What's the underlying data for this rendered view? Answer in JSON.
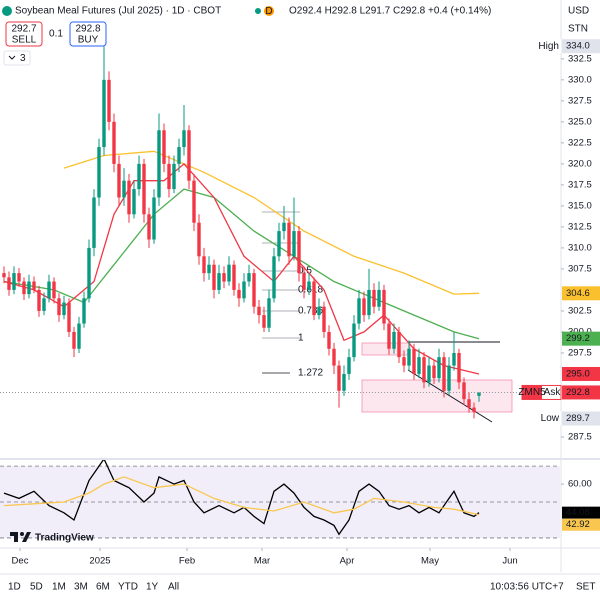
{
  "header": {
    "title": "Soybean Meal Futures (Jul 2025) · 1D · CBOT",
    "marker": "D",
    "ohlc": "O292.4 H292.8 L291.7 C292.8 +0.4 (+0.14%)"
  },
  "trade": {
    "sell_price": "292.7",
    "sell": "SELL",
    "spread": "0.1",
    "buy_price": "292.8",
    "buy": "BUY"
  },
  "indicators_count": "3",
  "currency": "USD",
  "unit": "STN",
  "fib_levels": [
    "0.5",
    "0.618",
    "0.786",
    "1",
    "1.272"
  ],
  "logo": "TradingView",
  "toolbar": {
    "ranges": [
      "1D",
      "5D",
      "1M",
      "3M",
      "6M",
      "YTD",
      "1Y",
      "All"
    ],
    "clock": "10:03:56 UTC+7",
    "session": "SET"
  },
  "chart_data": [
    {
      "type": "candlestick",
      "xlim": [
        -0.8,
        111.2
      ],
      "ylim": [
        285,
        339.5
      ],
      "xticks": [
        {
          "value": 3.2,
          "label": "Dec"
        },
        {
          "value": 19.2,
          "label": "2025"
        },
        {
          "value": 36.6,
          "label": "Feb"
        },
        {
          "value": 51.6,
          "label": "Mar"
        },
        {
          "value": 68.6,
          "label": "Apr"
        },
        {
          "value": 85.2,
          "label": "May"
        },
        {
          "value": 101.2,
          "label": "Jun"
        }
      ],
      "yticks": [
        {
          "value": 287.5,
          "label": "287.5"
        },
        {
          "value": 297.5,
          "label": "297.5"
        },
        {
          "value": 300,
          "label": "300.0"
        },
        {
          "value": 302.5,
          "label": "302.5"
        },
        {
          "value": 307.5,
          "label": "307.5"
        },
        {
          "value": 310,
          "label": "310.0"
        },
        {
          "value": 312.5,
          "label": "312.5"
        },
        {
          "value": 315,
          "label": "315.0"
        },
        {
          "value": 317.5,
          "label": "317.5"
        },
        {
          "value": 320,
          "label": "320.0"
        },
        {
          "value": 322.5,
          "label": "322.5"
        },
        {
          "value": 325,
          "label": "325.0"
        },
        {
          "value": 327.5,
          "label": "327.5"
        },
        {
          "value": 330,
          "label": "330.0"
        },
        {
          "value": 332.5,
          "label": "332.5"
        }
      ],
      "up_color": "#089981",
      "down_color": "#f23645",
      "ohlc": [
        [
          307,
          307.8,
          305.8,
          306.5
        ],
        [
          306.5,
          307.2,
          304.3,
          305
        ],
        [
          305,
          307.8,
          304.5,
          307
        ],
        [
          307,
          307.6,
          305.4,
          306
        ],
        [
          306,
          306.5,
          303.8,
          304.5
        ],
        [
          304.5,
          306.8,
          304,
          306
        ],
        [
          306,
          306.6,
          304.6,
          305
        ],
        [
          305,
          305.5,
          301.8,
          302.5
        ],
        [
          302.5,
          304.7,
          302,
          304
        ],
        [
          304,
          306.8,
          303.5,
          306
        ],
        [
          306,
          306.5,
          303.4,
          304
        ],
        [
          304,
          304.6,
          301.2,
          302
        ],
        [
          302,
          304.3,
          301.5,
          303.5
        ],
        [
          303.5,
          304,
          299.4,
          300
        ],
        [
          300,
          300.6,
          297,
          298
        ],
        [
          298,
          301.8,
          297.5,
          301
        ],
        [
          301,
          304.8,
          300.5,
          304
        ],
        [
          304,
          311,
          303.5,
          310
        ],
        [
          310,
          317,
          309,
          316
        ],
        [
          316,
          323,
          315,
          322
        ],
        [
          322,
          334,
          321,
          330
        ],
        [
          330,
          331,
          324,
          325
        ],
        [
          325,
          326,
          319,
          320
        ],
        [
          320,
          321,
          315,
          316
        ],
        [
          316,
          319.5,
          315,
          318
        ],
        [
          318,
          318.8,
          313,
          314
        ],
        [
          314,
          318,
          313.5,
          317
        ],
        [
          317,
          321,
          316.2,
          320
        ],
        [
          320,
          320.6,
          313,
          314
        ],
        [
          314,
          314.8,
          310,
          311
        ],
        [
          311,
          317,
          310.5,
          316
        ],
        [
          316,
          326,
          315,
          324
        ],
        [
          324,
          324.8,
          319,
          320
        ],
        [
          320,
          321,
          316,
          317
        ],
        [
          317,
          321,
          316.5,
          320
        ],
        [
          320,
          323,
          319,
          322
        ],
        [
          322,
          327,
          321,
          324
        ],
        [
          324,
          324.6,
          317,
          318
        ],
        [
          318,
          318.8,
          312,
          313
        ],
        [
          313,
          314,
          308,
          309
        ],
        [
          309,
          310,
          306,
          307
        ],
        [
          307,
          309,
          306.2,
          308
        ],
        [
          308,
          308.6,
          304,
          305
        ],
        [
          305,
          308,
          304.5,
          307
        ],
        [
          307,
          307.8,
          305.2,
          306
        ],
        [
          306,
          309,
          305.5,
          308
        ],
        [
          308,
          308.5,
          304.3,
          305
        ],
        [
          305,
          305.8,
          303,
          304
        ],
        [
          304,
          307,
          303.5,
          306
        ],
        [
          306,
          308,
          305.4,
          307
        ],
        [
          307,
          307.5,
          302.2,
          303
        ],
        [
          303,
          303.8,
          301,
          302
        ],
        [
          302,
          303,
          300,
          300.5
        ],
        [
          300.5,
          305,
          300,
          304
        ],
        [
          304,
          310,
          303.5,
          309
        ],
        [
          309,
          313,
          308.4,
          312
        ],
        [
          312,
          315,
          311,
          313
        ],
        [
          313,
          313.6,
          308,
          309
        ],
        [
          309,
          316,
          308.5,
          312
        ],
        [
          312,
          312.6,
          306,
          307
        ],
        [
          307,
          307.8,
          304,
          305
        ],
        [
          305,
          307,
          304.4,
          306
        ],
        [
          306,
          306.5,
          301.4,
          302
        ],
        [
          302,
          304,
          301.5,
          303
        ],
        [
          303,
          303.6,
          299.3,
          300
        ],
        [
          300,
          300.8,
          297.2,
          298
        ],
        [
          298,
          298.7,
          295,
          296
        ],
        [
          296,
          296.6,
          291,
          293
        ],
        [
          293,
          296,
          292.4,
          295
        ],
        [
          295,
          298,
          294.3,
          297
        ],
        [
          297,
          302,
          296.5,
          301
        ],
        [
          301,
          305,
          300.3,
          304
        ],
        [
          304,
          304.8,
          301.2,
          302
        ],
        [
          302,
          307.5,
          301.5,
          305
        ],
        [
          305,
          305.8,
          302.2,
          303
        ],
        [
          303,
          306,
          302.5,
          305
        ],
        [
          305,
          305.6,
          300.2,
          301
        ],
        [
          301,
          301.6,
          297.3,
          298
        ],
        [
          298,
          301,
          297.4,
          300
        ],
        [
          300,
          300.6,
          296.3,
          297
        ],
        [
          297,
          297.8,
          295.2,
          296
        ],
        [
          296,
          299,
          295.4,
          298
        ],
        [
          298,
          298.6,
          294.3,
          295
        ],
        [
          295,
          298,
          294.5,
          297
        ],
        [
          297,
          297.6,
          293.3,
          294
        ],
        [
          294,
          297,
          293.5,
          296
        ],
        [
          296,
          296.6,
          293.8,
          294.5
        ],
        [
          294.5,
          298,
          294,
          297
        ],
        [
          297,
          297.6,
          292.2,
          293
        ],
        [
          293,
          297,
          292.5,
          296
        ],
        [
          296,
          300,
          295.4,
          297.5
        ],
        [
          297.5,
          298,
          293.2,
          294
        ],
        [
          294,
          294.6,
          291.3,
          292
        ],
        [
          292,
          292.8,
          290.4,
          291
        ],
        [
          291,
          291.6,
          289.7,
          290.5
        ],
        [
          292.4,
          292.8,
          291.7,
          292.8
        ]
      ],
      "series": [
        {
          "color": "#fbc02d",
          "x": [
            12,
            20,
            30,
            40,
            50,
            60,
            70,
            80,
            90,
            95
          ],
          "values": [
            319.5,
            321,
            321.5,
            319,
            316,
            312,
            309,
            307,
            304.5,
            304.6
          ]
        },
        {
          "color": "#4caf50",
          "x": [
            0,
            10,
            16,
            22,
            30,
            36,
            42,
            50,
            58,
            66,
            74,
            82,
            90,
            95
          ],
          "values": [
            306,
            305,
            303.5,
            308,
            314,
            317,
            316,
            312,
            309,
            306,
            304,
            302,
            300,
            299.2
          ]
        },
        {
          "color": "#f23645",
          "x": [
            0,
            6,
            12,
            18,
            22,
            26,
            32,
            36,
            42,
            48,
            54,
            58,
            64,
            68,
            72,
            76,
            82,
            88,
            95
          ],
          "values": [
            306,
            305,
            303,
            306,
            314,
            318,
            318,
            320,
            316,
            309,
            306,
            309,
            305,
            299,
            300,
            302,
            298,
            296,
            295
          ]
        }
      ],
      "price_tags": [
        {
          "label": "High",
          "value": 334,
          "value_label": "334.0",
          "color": "#e0e3eb",
          "text_color": "#131722"
        },
        {
          "value": 304.6,
          "value_label": "304.6",
          "color": "#fbc02d",
          "text_color": "#131722"
        },
        {
          "value": 299.2,
          "value_label": "299.2",
          "color": "#4caf50",
          "text_color": "#ffffff"
        },
        {
          "value": 295,
          "value_label": "295.0",
          "color": "#f23645",
          "text_color": "#ffffff"
        },
        {
          "symbol": "ZMN5",
          "label": "Ask",
          "value": 292.8,
          "value_label": "292.8",
          "color": "#f23645",
          "text_color": "#ffffff"
        },
        {
          "label": "Low",
          "value": 289.7,
          "value_label": "289.7",
          "color": "#e0e3eb",
          "text_color": "#131722"
        }
      ]
    },
    {
      "type": "line",
      "xlim": [
        -0.8,
        111.2
      ],
      "ylim": [
        25.5,
        72.3
      ],
      "yticks": [
        {
          "value": 60,
          "label": "60.00"
        }
      ],
      "levels": [
        30,
        50,
        70
      ],
      "band": [
        30,
        70
      ],
      "series": [
        {
          "color": "#000000",
          "last_label": "44.08",
          "x": [
            0,
            3,
            6,
            9,
            12,
            14,
            17,
            19,
            20,
            22,
            25,
            28,
            30,
            31,
            34,
            36,
            38,
            40,
            43,
            46,
            48,
            50,
            52,
            54,
            56,
            58,
            60,
            62,
            64,
            66,
            67,
            69,
            71,
            73,
            75,
            77,
            79,
            81,
            83,
            85,
            87,
            89,
            90,
            92,
            94,
            95
          ],
          "values": [
            55,
            52,
            56,
            48,
            44,
            40,
            62,
            70,
            74,
            62,
            58,
            50,
            55,
            64,
            60,
            62,
            50,
            44,
            48,
            44,
            47,
            42,
            38,
            56,
            60,
            55,
            47,
            42,
            40,
            37,
            32,
            40,
            56,
            60,
            56,
            48,
            46,
            48,
            44,
            47,
            44,
            52,
            56,
            44,
            42,
            44.08
          ]
        },
        {
          "color": "#f9c74f",
          "last_label": "42.92",
          "x": [
            0,
            6,
            12,
            17,
            20,
            24,
            30,
            36,
            42,
            48,
            54,
            60,
            66,
            70,
            74,
            80,
            86,
            90,
            95
          ],
          "values": [
            48,
            49,
            50,
            55,
            60,
            64,
            58,
            60,
            52,
            47,
            45,
            50,
            44,
            46,
            52,
            50,
            47,
            46,
            42.92
          ]
        }
      ]
    }
  ]
}
